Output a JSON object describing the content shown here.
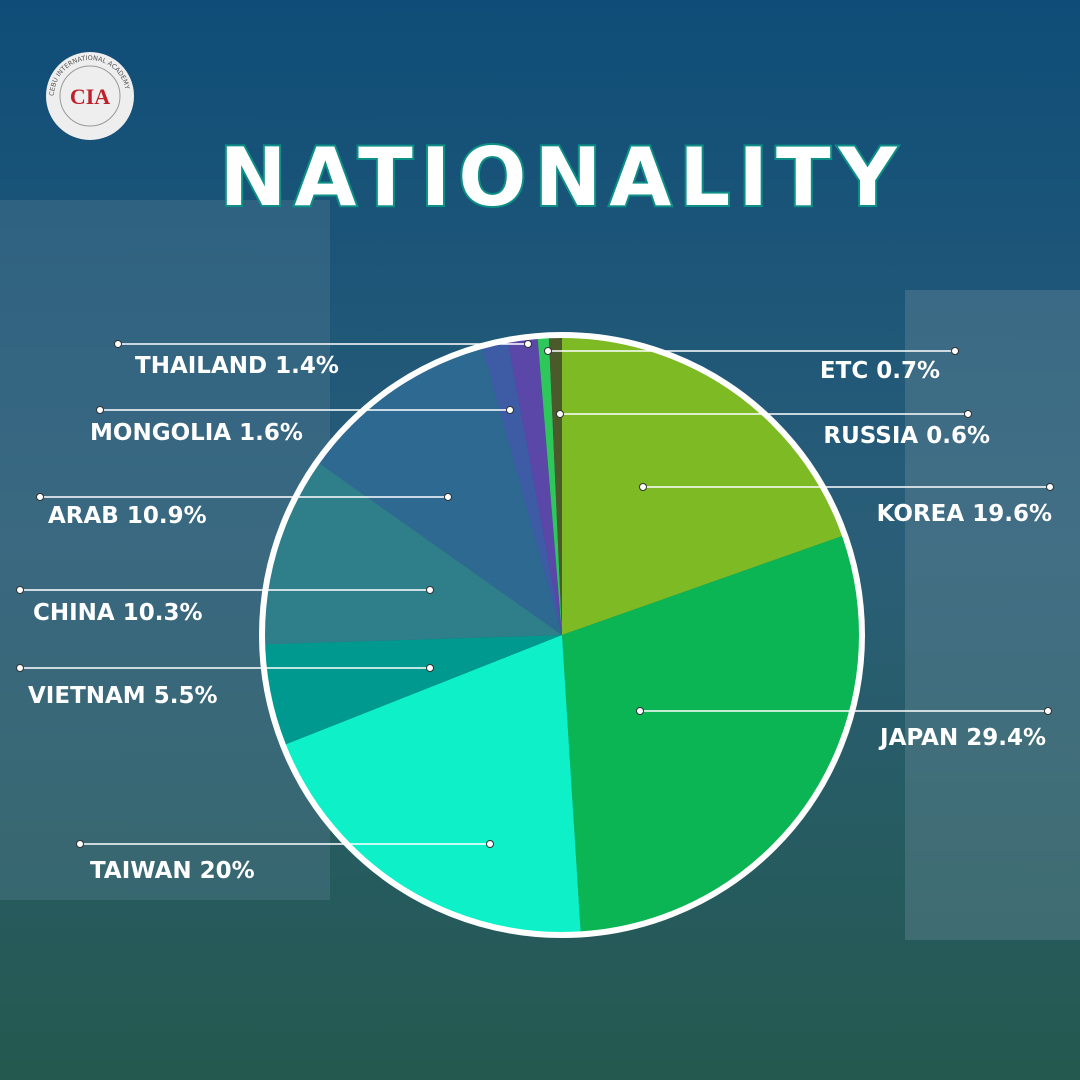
{
  "logo": {
    "text": "CIA",
    "ring": "CEBU INTERNATIONAL ACADEMY"
  },
  "chart_data": {
    "type": "pie",
    "title": "NATIONALITY",
    "categories": [
      "KOREA",
      "JAPAN",
      "TAIWAN",
      "VIETNAM",
      "CHINA",
      "ARAB",
      "THAILAND",
      "MONGOLIA",
      "RUSSIA",
      "ETC"
    ],
    "values": [
      19.6,
      29.4,
      20,
      5.5,
      10.3,
      10.9,
      1.4,
      1.6,
      0.6,
      0.7
    ],
    "value_labels": [
      "19.6%",
      "29.4%",
      "20%",
      "5.5%",
      "10.3%",
      "10.9%",
      "1.4%",
      "1.6%",
      "0.6%",
      "0.7%"
    ],
    "colors": [
      "#7dba23",
      "#0cb554",
      "#0ef0c8",
      "#009990",
      "#2f7f8a",
      "#2d6991",
      "#3e5ba6",
      "#5a47a8",
      "#2ec85a",
      "#4a5a2a"
    ]
  }
}
